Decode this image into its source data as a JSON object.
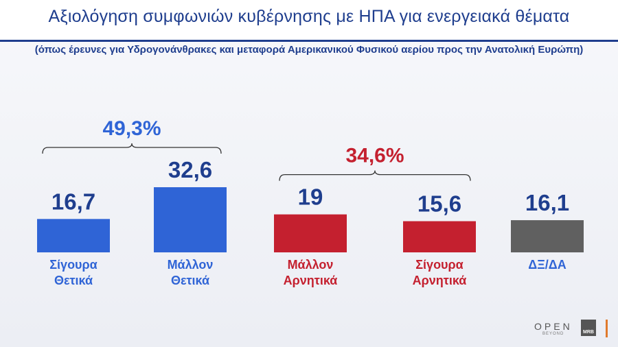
{
  "header": {
    "title": "Αξιολόγηση συμφωνιών κυβέρνησης με ΗΠΑ για ενεργειακά θέματα",
    "subtitle": "(όπως έρευνες για Υδρογονάνθρακες και μεταφορά Αμερικανικού Φυσικού αερίου προς την Ανατολική Ευρώπη)"
  },
  "chart_data": {
    "type": "bar",
    "categories": [
      [
        "Σίγουρα",
        "Θετικά"
      ],
      [
        "Μάλλον",
        "Θετικά"
      ],
      [
        "Μάλλον",
        "Αρνητικά"
      ],
      [
        "Σίγουρα",
        "Αρνητικά"
      ],
      [
        "ΔΞ/ΔΑ"
      ]
    ],
    "values": [
      16.7,
      32.6,
      19,
      15.6,
      16.1
    ],
    "value_labels": [
      "16,7",
      "32,6",
      "19",
      "15,6",
      "16,1"
    ],
    "colors": [
      "#2f64d6",
      "#2f64d6",
      "#c4202f",
      "#c4202f",
      "#606060"
    ],
    "label_colors": [
      "#2f64d6",
      "#2f64d6",
      "#c4202f",
      "#c4202f",
      "#2f64d6"
    ],
    "groups": [
      {
        "label": "49,3%",
        "members": [
          0,
          1
        ],
        "color": "#2f64d6"
      },
      {
        "label": "34,6%",
        "members": [
          2,
          3
        ],
        "color": "#c4202f"
      }
    ]
  },
  "logo": {
    "brand": "OPEN",
    "tagline": "BEYOND",
    "partner": "MRB"
  }
}
